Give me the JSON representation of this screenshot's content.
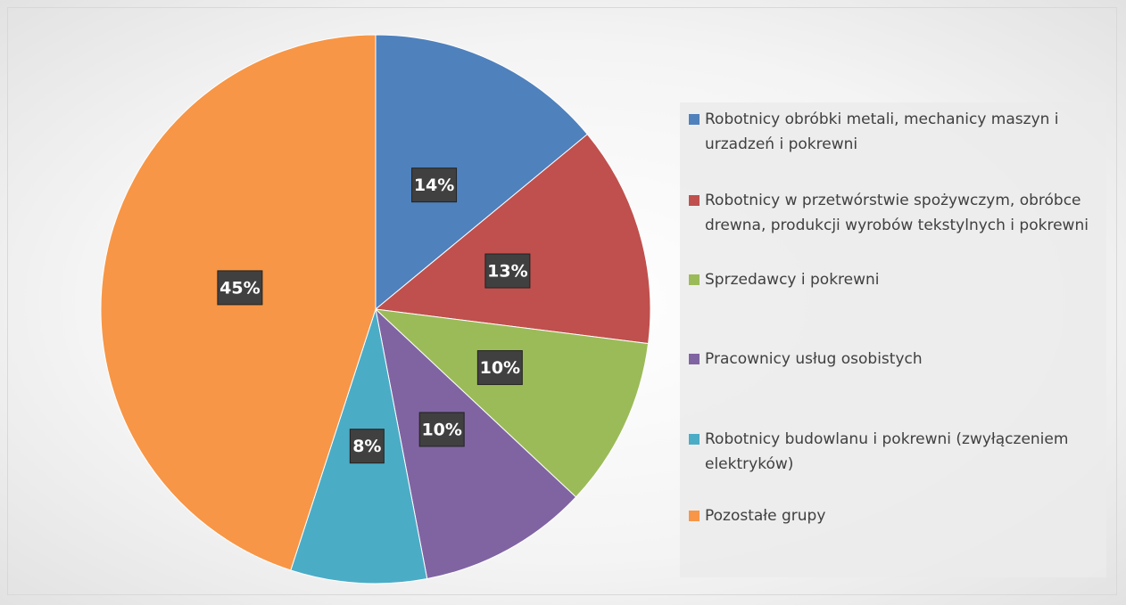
{
  "chart_data": {
    "type": "pie",
    "categories": [
      "Robotnicy obróbki metali, mechanicy maszyn i urzadzeń i pokrewni",
      "Robotnicy w przetwórstwie spożywczym, obróbce drewna, produkcji wyrobów tekstylnych i pokrewni",
      "Sprzedawcy i pokrewni",
      "Pracownicy usług osobistych",
      "Robotnicy budowlanu i pokrewni (zwyłączeniem elektryków)",
      "Pozostałe grupy"
    ],
    "values": [
      14,
      13,
      10,
      10,
      8,
      45
    ],
    "value_labels": [
      "14%",
      "13%",
      "10%",
      "10%",
      "8%",
      "45%"
    ],
    "colors": [
      "#4f81bd",
      "#c0504d",
      "#9bbb59",
      "#8064a2",
      "#4bacc6",
      "#f79646"
    ]
  }
}
